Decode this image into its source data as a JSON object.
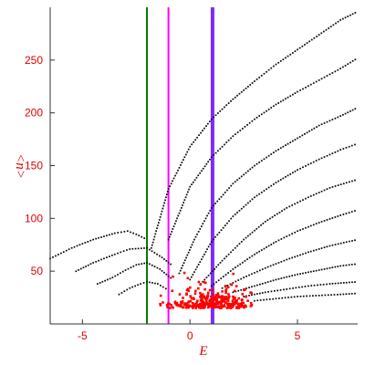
{
  "chart_data": {
    "type": "scatter",
    "title": "",
    "xlabel": "E",
    "ylabel": "<n>",
    "xlim": [
      -6.5,
      7.8
    ],
    "ylim": [
      0,
      300
    ],
    "x_ticks": [
      -5,
      0,
      5
    ],
    "y_ticks": [
      50,
      100,
      150,
      200,
      250
    ],
    "x_tick_labels": [
      "-5",
      "0",
      "5"
    ],
    "y_tick_labels": [
      "50",
      "100",
      "150",
      "200",
      "250"
    ],
    "grid": false,
    "legend": "none",
    "colors": {
      "axis_text": "#e00000",
      "dots_black": "#000000",
      "dots_red": "#ff0000",
      "vline_green": "#007700",
      "vline_magenta": "#ff00ff",
      "vline_purple": "#7a2cff"
    },
    "vertical_lines": [
      {
        "name": "",
        "x": -2.0,
        "color": "#007700"
      },
      {
        "name": "",
        "x": -1.0,
        "color": "#ff00ff"
      },
      {
        "name": "",
        "x": 1.05,
        "color": "#7a2cff"
      }
    ],
    "series": [
      {
        "name": "",
        "color": "#000000",
        "style": "dotted-curves",
        "curves": [
          {
            "points": [
              [
                -6.5,
                62
              ],
              [
                -5.5,
                72
              ],
              [
                -4.5,
                80
              ],
              [
                -3.5,
                86
              ],
              [
                -2.9,
                88
              ],
              [
                -2.5,
                85
              ],
              [
                -2.0,
                80
              ]
            ]
          },
          {
            "points": [
              [
                -5.3,
                50
              ],
              [
                -4.5,
                58
              ],
              [
                -3.5,
                66
              ],
              [
                -2.8,
                71
              ],
              [
                -2.0,
                72
              ],
              [
                -1.3,
                63
              ],
              [
                -0.8,
                55
              ]
            ]
          },
          {
            "points": [
              [
                -4.3,
                38
              ],
              [
                -3.6,
                44
              ],
              [
                -3.0,
                51
              ],
              [
                -2.5,
                56
              ],
              [
                -2.0,
                58
              ],
              [
                -1.4,
                52
              ],
              [
                -0.8,
                42
              ]
            ]
          },
          {
            "points": [
              [
                -3.3,
                28
              ],
              [
                -2.8,
                34
              ],
              [
                -2.3,
                38
              ],
              [
                -2.0,
                40
              ],
              [
                -1.5,
                38
              ],
              [
                -1.0,
                32
              ]
            ]
          },
          {
            "points": [
              [
                -1.8,
                72
              ],
              [
                -1.0,
                128
              ],
              [
                0.0,
                168
              ],
              [
                1.0,
                194
              ],
              [
                2.0,
                213
              ],
              [
                3.0,
                230
              ],
              [
                4.0,
                246
              ],
              [
                5.0,
                260
              ],
              [
                6.0,
                274
              ],
              [
                7.0,
                288
              ],
              [
                7.8,
                296
              ]
            ]
          },
          {
            "points": [
              [
                -1.0,
                80
              ],
              [
                0.0,
                130
              ],
              [
                1.0,
                158
              ],
              [
                2.0,
                178
              ],
              [
                3.0,
                194
              ],
              [
                4.0,
                208
              ],
              [
                5.0,
                220
              ],
              [
                6.0,
                231
              ],
              [
                7.0,
                242
              ],
              [
                7.8,
                252
              ]
            ]
          },
          {
            "points": [
              [
                -0.5,
                48
              ],
              [
                0.2,
                80
              ],
              [
                1.0,
                110
              ],
              [
                2.0,
                133
              ],
              [
                3.0,
                150
              ],
              [
                4.0,
                164
              ],
              [
                5.0,
                176
              ],
              [
                6.0,
                188
              ],
              [
                7.0,
                197
              ],
              [
                7.8,
                205
              ]
            ]
          },
          {
            "points": [
              [
                0.0,
                42
              ],
              [
                1.0,
                78
              ],
              [
                2.0,
                102
              ],
              [
                3.0,
                120
              ],
              [
                4.0,
                134
              ],
              [
                5.0,
                146
              ],
              [
                6.0,
                156
              ],
              [
                7.0,
                165
              ],
              [
                7.8,
                171
              ]
            ]
          },
          {
            "points": [
              [
                0.5,
                38
              ],
              [
                1.5,
                60
              ],
              [
                2.5,
                80
              ],
              [
                3.5,
                97
              ],
              [
                4.5,
                110
              ],
              [
                5.5,
                120
              ],
              [
                6.5,
                129
              ],
              [
                7.8,
                137
              ]
            ]
          },
          {
            "points": [
              [
                1.0,
                36
              ],
              [
                2.0,
                52
              ],
              [
                3.0,
                66
              ],
              [
                4.0,
                78
              ],
              [
                5.0,
                88
              ],
              [
                6.0,
                96
              ],
              [
                7.0,
                103
              ],
              [
                7.8,
                108
              ]
            ]
          },
          {
            "points": [
              [
                1.5,
                34
              ],
              [
                2.5,
                44
              ],
              [
                3.5,
                53
              ],
              [
                4.5,
                61
              ],
              [
                5.5,
                68
              ],
              [
                6.5,
                74
              ],
              [
                7.8,
                80
              ]
            ]
          },
          {
            "points": [
              [
                2.0,
                30
              ],
              [
                3.0,
                36
              ],
              [
                4.0,
                42
              ],
              [
                5.0,
                47
              ],
              [
                6.0,
                51
              ],
              [
                7.0,
                55
              ],
              [
                7.8,
                57
              ]
            ]
          },
          {
            "points": [
              [
                2.5,
                26
              ],
              [
                3.5,
                30
              ],
              [
                4.5,
                33
              ],
              [
                5.5,
                36
              ],
              [
                6.5,
                38
              ],
              [
                7.8,
                40
              ]
            ]
          },
          {
            "points": [
              [
                3.0,
                22
              ],
              [
                4.0,
                24
              ],
              [
                5.0,
                26
              ],
              [
                6.0,
                27
              ],
              [
                7.0,
                28
              ],
              [
                7.8,
                29
              ]
            ]
          }
        ]
      },
      {
        "name": "",
        "color": "#ff0000",
        "style": "cluster",
        "center": [
          0.9,
          15
        ],
        "spread": [
          1.1,
          9
        ],
        "count": 320,
        "range_x": [
          -1.4,
          2.9
        ],
        "range_y": [
          3,
          55
        ]
      }
    ]
  }
}
